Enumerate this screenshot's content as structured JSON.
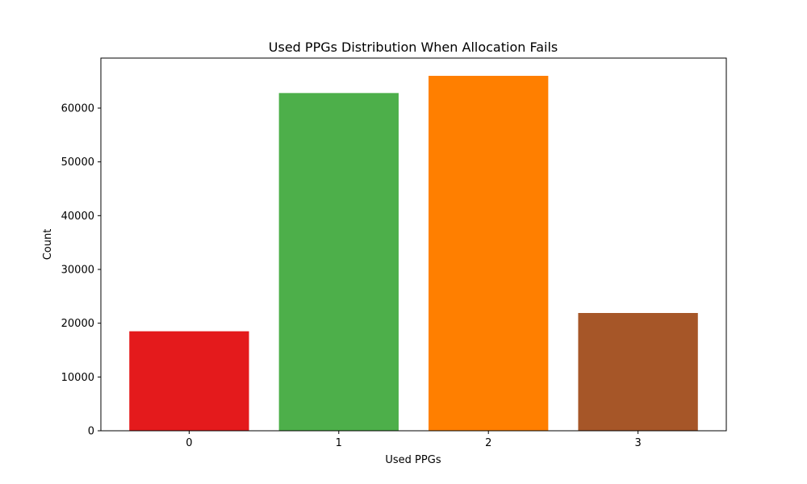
{
  "chart_data": {
    "type": "bar",
    "title": "Used PPGs Distribution When Allocation Fails",
    "xlabel": "Used PPGs",
    "ylabel": "Count",
    "categories": [
      "0",
      "1",
      "2",
      "3"
    ],
    "values": [
      18500,
      62800,
      66000,
      21900
    ],
    "colors": [
      "#e41a1c",
      "#4daf4a",
      "#ff7f00",
      "#a65628"
    ],
    "ylim": [
      0,
      69300
    ],
    "yticks": [
      0,
      10000,
      20000,
      30000,
      40000,
      50000,
      60000
    ],
    "grid": false,
    "legend": "none"
  }
}
